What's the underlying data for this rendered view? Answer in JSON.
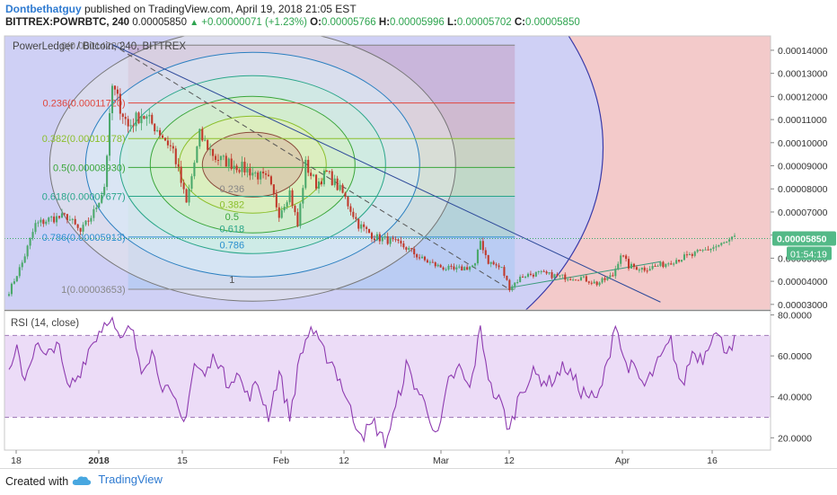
{
  "header": {
    "author": "Dontbethatguy",
    "published": "published on TradingView.com, April 19, 2018 21:05 EST",
    "symbol": "BITTREX:POWRBTC, 240",
    "last": "0.00005850",
    "change_arrow": "▲",
    "change": "+0.00000071 (+1.23%)",
    "o_label": "O:",
    "o_value": "0.00005766",
    "h_label": "H:",
    "h_value": "0.00005996",
    "l_label": "L:",
    "l_value": "0.00005702",
    "c_label": "C:",
    "c_value": "0.00005850"
  },
  "footer": {
    "created": "Created with",
    "brand": "TradingView",
    "logo_icon": "tradingview-cloud-icon"
  },
  "chart_data": [
    {
      "type": "candlestick",
      "title": "PowerLedger / Bitcoin, 240, BITTREX",
      "x_ticks": [
        "18",
        "2018",
        "15",
        "Feb",
        "12",
        "Mar",
        "12",
        "Apr",
        "16"
      ],
      "y_ticks": [
        "0.00014000",
        "0.00013000",
        "0.00012000",
        "0.00011000",
        "0.00010000",
        "0.00009000",
        "0.00008000",
        "0.00007000",
        "0.00006000",
        "0.00005000",
        "0.00004000",
        "0.00003000"
      ],
      "ylim": [
        2.76e-05,
        0.0001462
      ],
      "last_price_label": "0.00005850",
      "countdown_label": "01:54:19",
      "fib_levels": [
        {
          "ratio": 0,
          "label": "0(0.00014220)",
          "price": 0.0001422,
          "color": "#808080"
        },
        {
          "ratio": 0.236,
          "label": "0.236(0.00011720)",
          "price": 0.0001172,
          "color": "#e0463d"
        },
        {
          "ratio": 0.382,
          "label": "0.382(0.00010178)",
          "price": 0.00010178,
          "color": "#8bbf2b"
        },
        {
          "ratio": 0.5,
          "label": "0.5(0.00008930)",
          "price": 8.93e-05,
          "color": "#3aa63a"
        },
        {
          "ratio": 0.618,
          "label": "0.618(0.00007677)",
          "price": 7.677e-05,
          "color": "#28a58a"
        },
        {
          "ratio": 0.786,
          "label": "0.786(0.00005913)",
          "price": 5.913e-05,
          "color": "#2a8fcf"
        },
        {
          "ratio": 1,
          "label": "1(0.00003653)",
          "price": 3.653e-05,
          "color": "#888888"
        }
      ],
      "fib_circle_labels": [
        "0.236",
        "0.382",
        "0.5",
        "0.618",
        "0.786",
        "1"
      ],
      "key_prices": [
        {
          "t": 0,
          "p": 3.55e-05
        },
        {
          "t": 5,
          "p": 4.8e-05
        },
        {
          "t": 10,
          "p": 6.45e-05
        },
        {
          "t": 16,
          "p": 6.72e-05
        },
        {
          "t": 22,
          "p": 6.8e-05
        },
        {
          "t": 27,
          "p": 6.12e-05
        },
        {
          "t": 32,
          "p": 6.98e-05
        },
        {
          "t": 36,
          "p": 8.12e-05
        },
        {
          "t": 39,
          "p": 0.0001242
        },
        {
          "t": 45,
          "p": 0.000107
        },
        {
          "t": 50,
          "p": 0.0001125
        },
        {
          "t": 56,
          "p": 0.000106
        },
        {
          "t": 62,
          "p": 9.68e-05
        },
        {
          "t": 67,
          "p": 7.35e-05
        },
        {
          "t": 72,
          "p": 0.0001032
        },
        {
          "t": 78,
          "p": 9.35e-05
        },
        {
          "t": 85,
          "p": 9.05e-05
        },
        {
          "t": 92,
          "p": 8.72e-05
        },
        {
          "t": 98,
          "p": 8.35e-05
        },
        {
          "t": 102,
          "p": 6.95e-05
        },
        {
          "t": 106,
          "p": 7.88e-05
        },
        {
          "t": 109,
          "p": 6.4e-05
        },
        {
          "t": 112,
          "p": 9.05e-05
        },
        {
          "t": 116,
          "p": 8.2e-05
        },
        {
          "t": 120,
          "p": 8.7e-05
        },
        {
          "t": 126,
          "p": 7.8e-05
        },
        {
          "t": 132,
          "p": 6.45e-05
        },
        {
          "t": 138,
          "p": 5.92e-05
        },
        {
          "t": 144,
          "p": 5.75e-05
        },
        {
          "t": 150,
          "p": 5.45e-05
        },
        {
          "t": 156,
          "p": 4.95e-05
        },
        {
          "t": 162,
          "p": 4.65e-05
        },
        {
          "t": 168,
          "p": 4.48e-05
        },
        {
          "t": 173,
          "p": 4.6e-05
        },
        {
          "t": 176,
          "p": 4.7e-05
        },
        {
          "t": 178,
          "p": 5.75e-05
        },
        {
          "t": 181,
          "p": 4.85e-05
        },
        {
          "t": 186,
          "p": 4.55e-05
        },
        {
          "t": 189,
          "p": 3.72e-05
        },
        {
          "t": 194,
          "p": 4.25e-05
        },
        {
          "t": 200,
          "p": 4.35e-05
        },
        {
          "t": 208,
          "p": 4.2e-05
        },
        {
          "t": 216,
          "p": 4.15e-05
        },
        {
          "t": 222,
          "p": 3.9e-05
        },
        {
          "t": 228,
          "p": 4.25e-05
        },
        {
          "t": 231,
          "p": 5.2e-05
        },
        {
          "t": 234,
          "p": 4.65e-05
        },
        {
          "t": 240,
          "p": 4.55e-05
        },
        {
          "t": 246,
          "p": 4.7e-05
        },
        {
          "t": 252,
          "p": 4.95e-05
        },
        {
          "t": 258,
          "p": 5.12e-05
        },
        {
          "t": 264,
          "p": 5.4e-05
        },
        {
          "t": 270,
          "p": 5.62e-05
        },
        {
          "t": 274,
          "p": 5.85e-05
        }
      ]
    },
    {
      "type": "line",
      "title": "RSI (14, close)",
      "y_ticks": [
        "80.0000",
        "60.0000",
        "40.0000",
        "20.0000"
      ],
      "ylim": [
        14,
        82
      ],
      "bands": [
        30,
        70
      ],
      "line_color": "#8e3bb0",
      "key_values": [
        {
          "t": 0,
          "v": 50
        },
        {
          "t": 3,
          "v": 62
        },
        {
          "t": 6,
          "v": 49
        },
        {
          "t": 10,
          "v": 66
        },
        {
          "t": 14,
          "v": 58
        },
        {
          "t": 18,
          "v": 68
        },
        {
          "t": 22,
          "v": 44
        },
        {
          "t": 26,
          "v": 50
        },
        {
          "t": 30,
          "v": 63
        },
        {
          "t": 34,
          "v": 72
        },
        {
          "t": 38,
          "v": 80
        },
        {
          "t": 42,
          "v": 66
        },
        {
          "t": 46,
          "v": 74
        },
        {
          "t": 50,
          "v": 55
        },
        {
          "t": 54,
          "v": 62
        },
        {
          "t": 58,
          "v": 46
        },
        {
          "t": 62,
          "v": 38
        },
        {
          "t": 66,
          "v": 27
        },
        {
          "t": 70,
          "v": 56
        },
        {
          "t": 74,
          "v": 50
        },
        {
          "t": 78,
          "v": 61
        },
        {
          "t": 82,
          "v": 47
        },
        {
          "t": 86,
          "v": 52
        },
        {
          "t": 90,
          "v": 40
        },
        {
          "t": 94,
          "v": 46
        },
        {
          "t": 98,
          "v": 31
        },
        {
          "t": 102,
          "v": 52
        },
        {
          "t": 106,
          "v": 30
        },
        {
          "t": 110,
          "v": 60
        },
        {
          "t": 114,
          "v": 74
        },
        {
          "t": 118,
          "v": 63
        },
        {
          "t": 122,
          "v": 57
        },
        {
          "t": 126,
          "v": 45
        },
        {
          "t": 130,
          "v": 29
        },
        {
          "t": 134,
          "v": 22
        },
        {
          "t": 138,
          "v": 27
        },
        {
          "t": 142,
          "v": 17
        },
        {
          "t": 146,
          "v": 34
        },
        {
          "t": 150,
          "v": 55
        },
        {
          "t": 154,
          "v": 44
        },
        {
          "t": 158,
          "v": 34
        },
        {
          "t": 162,
          "v": 20
        },
        {
          "t": 166,
          "v": 47
        },
        {
          "t": 170,
          "v": 54
        },
        {
          "t": 174,
          "v": 43
        },
        {
          "t": 178,
          "v": 73
        },
        {
          "t": 182,
          "v": 44
        },
        {
          "t": 186,
          "v": 36
        },
        {
          "t": 189,
          "v": 23
        },
        {
          "t": 193,
          "v": 43
        },
        {
          "t": 198,
          "v": 51
        },
        {
          "t": 204,
          "v": 47
        },
        {
          "t": 210,
          "v": 55
        },
        {
          "t": 216,
          "v": 43
        },
        {
          "t": 222,
          "v": 38
        },
        {
          "t": 226,
          "v": 56
        },
        {
          "t": 229,
          "v": 78
        },
        {
          "t": 232,
          "v": 58
        },
        {
          "t": 236,
          "v": 53
        },
        {
          "t": 240,
          "v": 45
        },
        {
          "t": 245,
          "v": 56
        },
        {
          "t": 250,
          "v": 67
        },
        {
          "t": 254,
          "v": 44
        },
        {
          "t": 258,
          "v": 62
        },
        {
          "t": 262,
          "v": 59
        },
        {
          "t": 266,
          "v": 73
        },
        {
          "t": 270,
          "v": 64
        },
        {
          "t": 274,
          "v": 67
        }
      ]
    }
  ]
}
